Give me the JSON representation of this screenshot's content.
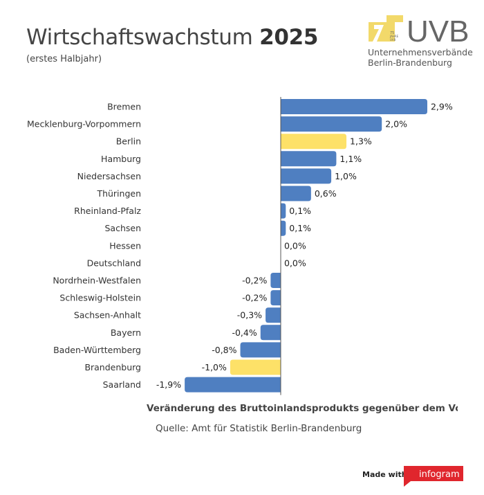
{
  "title": {
    "main": "Wirtschaftswachstum",
    "year": "2025"
  },
  "subtitle": "(erstes Halbjahr)",
  "logo": {
    "abbrev": "UVB",
    "badge_line1": "75",
    "badge_line2": "JAHRE",
    "badge_line3": "UVB",
    "line1": "Unternehmensverbände",
    "line2": "Berlin-Brandenburg"
  },
  "colors": {
    "bar_default": "#4f7fc1",
    "bar_highlight": "#fde168",
    "axis": "#555555",
    "logo_yellow": "#f2d96a",
    "logo_gray": "#666666",
    "brand_red": "#e0262d"
  },
  "chart_data": {
    "type": "bar",
    "orientation": "horizontal",
    "title": "Wirtschaftswachstum 2025",
    "subtitle": "(erstes Halbjahr)",
    "xlabel": "Veränderung des Bruttoinlandsprodukts gegenüber dem Vorjahr",
    "ylabel": "",
    "unit": "%",
    "xlim": [
      -1.9,
      2.9
    ],
    "categories": [
      "Bremen",
      "Mecklenburg-Vorpommern",
      "Berlin",
      "Hamburg",
      "Niedersachsen",
      "Thüringen",
      "Rheinland-Pfalz",
      "Sachsen",
      "Hessen",
      "Deutschland",
      "Nordrhein-Westfalen",
      "Schleswig-Holstein",
      "Sachsen-Anhalt",
      "Bayern",
      "Baden-Württemberg",
      "Brandenburg",
      "Saarland"
    ],
    "values": [
      2.9,
      2.0,
      1.3,
      1.1,
      1.0,
      0.6,
      0.1,
      0.1,
      0.0,
      0.0,
      -0.2,
      -0.2,
      -0.3,
      -0.4,
      -0.8,
      -1.0,
      -1.9
    ],
    "labels": [
      "2,9%",
      "2,0%",
      "1,3%",
      "1,1%",
      "1,0%",
      "0,6%",
      "0,1%",
      "0,1%",
      "0,0%",
      "0,0%",
      "-0,2%",
      "-0,2%",
      "-0,3%",
      "-0,4%",
      "-0,8%",
      "-1,0%",
      "-1,9%"
    ],
    "highlighted": [
      "Berlin",
      "Brandenburg"
    ]
  },
  "source": "Quelle: Amt für Statistik Berlin-Brandenburg",
  "footer": {
    "made_with": "Made with",
    "brand": "infogram"
  }
}
